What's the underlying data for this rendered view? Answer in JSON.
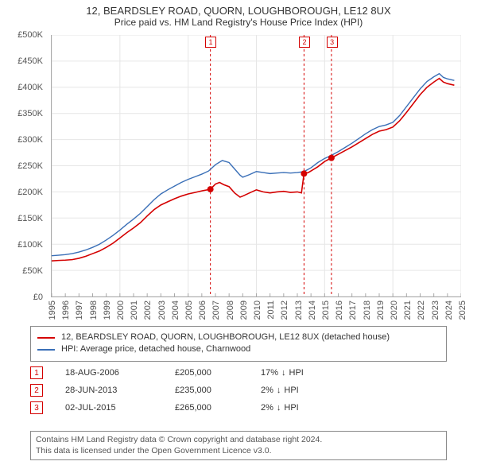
{
  "title": "12, BEARDSLEY ROAD, QUORN, LOUGHBOROUGH, LE12 8UX",
  "subtitle": "Price paid vs. HM Land Registry's House Price Index (HPI)",
  "chart": {
    "type": "line",
    "background_color": "#ffffff",
    "grid_color": "#e6e6e6",
    "axis_color": "#aaaaaa",
    "x": {
      "min": 1995,
      "max": 2025,
      "ticks": [
        1995,
        1996,
        1997,
        1998,
        1999,
        2000,
        2001,
        2002,
        2003,
        2004,
        2005,
        2006,
        2007,
        2008,
        2009,
        2010,
        2011,
        2012,
        2013,
        2014,
        2015,
        2016,
        2017,
        2018,
        2019,
        2020,
        2021,
        2022,
        2023,
        2024,
        2025
      ],
      "label_fontsize": 11
    },
    "y": {
      "min": 0,
      "max": 500000,
      "ticks": [
        0,
        50000,
        100000,
        150000,
        200000,
        250000,
        300000,
        350000,
        400000,
        450000,
        500000
      ],
      "prefix": "£",
      "suffix": "K",
      "divide": 1000,
      "label_fontsize": 11
    },
    "series": [
      {
        "name": "property",
        "label": "12, BEARDSLEY ROAD, QUORN, LOUGHBOROUGH, LE12 8UX (detached house)",
        "color": "#d40000",
        "line_width": 1.6,
        "data": [
          [
            1995,
            68000
          ],
          [
            1995.5,
            69000
          ],
          [
            1996,
            69500
          ],
          [
            1996.5,
            70500
          ],
          [
            1997,
            73000
          ],
          [
            1997.5,
            77000
          ],
          [
            1998,
            82000
          ],
          [
            1998.5,
            87000
          ],
          [
            1999,
            94000
          ],
          [
            1999.5,
            102000
          ],
          [
            2000,
            112000
          ],
          [
            2000.5,
            122000
          ],
          [
            2001,
            131000
          ],
          [
            2001.5,
            141000
          ],
          [
            2002,
            154000
          ],
          [
            2002.5,
            166000
          ],
          [
            2003,
            175000
          ],
          [
            2003.5,
            181000
          ],
          [
            2004,
            187000
          ],
          [
            2004.5,
            192000
          ],
          [
            2005,
            196000
          ],
          [
            2005.5,
            199000
          ],
          [
            2006,
            202000
          ],
          [
            2006.63,
            205000
          ],
          [
            2007,
            215000
          ],
          [
            2007.3,
            218000
          ],
          [
            2007.6,
            214000
          ],
          [
            2008,
            210000
          ],
          [
            2008.4,
            198000
          ],
          [
            2008.8,
            190000
          ],
          [
            2009,
            192000
          ],
          [
            2009.5,
            198000
          ],
          [
            2010,
            204000
          ],
          [
            2010.5,
            200000
          ],
          [
            2011,
            198000
          ],
          [
            2011.5,
            200000
          ],
          [
            2012,
            201000
          ],
          [
            2012.5,
            199000
          ],
          [
            2013,
            200000
          ],
          [
            2013.3,
            198000
          ],
          [
            2013.49,
            235000
          ],
          [
            2013.8,
            237000
          ],
          [
            2014,
            240000
          ],
          [
            2014.5,
            248000
          ],
          [
            2015,
            258000
          ],
          [
            2015.5,
            265000
          ],
          [
            2016,
            272000
          ],
          [
            2016.5,
            279000
          ],
          [
            2017,
            286000
          ],
          [
            2017.5,
            294000
          ],
          [
            2018,
            302000
          ],
          [
            2018.5,
            310000
          ],
          [
            2019,
            316000
          ],
          [
            2019.5,
            319000
          ],
          [
            2020,
            324000
          ],
          [
            2020.5,
            336000
          ],
          [
            2021,
            352000
          ],
          [
            2021.5,
            369000
          ],
          [
            2022,
            386000
          ],
          [
            2022.5,
            400000
          ],
          [
            2023,
            410000
          ],
          [
            2023.4,
            417000
          ],
          [
            2023.7,
            410000
          ],
          [
            2024,
            407000
          ],
          [
            2024.5,
            404000
          ]
        ]
      },
      {
        "name": "hpi",
        "label": "HPI: Average price, detached house, Charnwood",
        "color": "#3a6fb7",
        "line_width": 1.4,
        "data": [
          [
            1995,
            78000
          ],
          [
            1995.5,
            79000
          ],
          [
            1996,
            80000
          ],
          [
            1996.5,
            82000
          ],
          [
            1997,
            85000
          ],
          [
            1997.5,
            89000
          ],
          [
            1998,
            94000
          ],
          [
            1998.5,
            100000
          ],
          [
            1999,
            108000
          ],
          [
            1999.5,
            117000
          ],
          [
            2000,
            127000
          ],
          [
            2000.5,
            138000
          ],
          [
            2001,
            148000
          ],
          [
            2001.5,
            159000
          ],
          [
            2002,
            172000
          ],
          [
            2002.5,
            185000
          ],
          [
            2003,
            196000
          ],
          [
            2003.5,
            204000
          ],
          [
            2004,
            211000
          ],
          [
            2004.5,
            218000
          ],
          [
            2005,
            224000
          ],
          [
            2005.5,
            229000
          ],
          [
            2006,
            234000
          ],
          [
            2006.5,
            240000
          ],
          [
            2007,
            252000
          ],
          [
            2007.5,
            260000
          ],
          [
            2008,
            256000
          ],
          [
            2008.4,
            244000
          ],
          [
            2008.8,
            232000
          ],
          [
            2009,
            228000
          ],
          [
            2009.5,
            233000
          ],
          [
            2010,
            239000
          ],
          [
            2010.5,
            237000
          ],
          [
            2011,
            235000
          ],
          [
            2011.5,
            236000
          ],
          [
            2012,
            237000
          ],
          [
            2012.5,
            236000
          ],
          [
            2013,
            237000
          ],
          [
            2013.5,
            239000
          ],
          [
            2014,
            246000
          ],
          [
            2014.5,
            256000
          ],
          [
            2015,
            264000
          ],
          [
            2015.5,
            270000
          ],
          [
            2016,
            277000
          ],
          [
            2016.5,
            285000
          ],
          [
            2017,
            293000
          ],
          [
            2017.5,
            302000
          ],
          [
            2018,
            311000
          ],
          [
            2018.5,
            319000
          ],
          [
            2019,
            325000
          ],
          [
            2019.5,
            328000
          ],
          [
            2020,
            333000
          ],
          [
            2020.5,
            346000
          ],
          [
            2021,
            363000
          ],
          [
            2021.5,
            380000
          ],
          [
            2022,
            397000
          ],
          [
            2022.5,
            411000
          ],
          [
            2023,
            420000
          ],
          [
            2023.4,
            426000
          ],
          [
            2023.7,
            419000
          ],
          [
            2024,
            416000
          ],
          [
            2024.5,
            413000
          ]
        ]
      }
    ],
    "event_markers": [
      {
        "n": "1",
        "x": 2006.63,
        "y": 205000,
        "color": "#d40000"
      },
      {
        "n": "2",
        "x": 2013.49,
        "y": 235000,
        "color": "#d40000"
      },
      {
        "n": "3",
        "x": 2015.5,
        "y": 265000,
        "color": "#d40000"
      }
    ],
    "event_line_color": "#d40000",
    "event_line_dash": "3,3"
  },
  "legend": {
    "border_color": "#888888",
    "items": [
      {
        "color": "#d40000",
        "text": "12, BEARDSLEY ROAD, QUORN, LOUGHBOROUGH, LE12 8UX (detached house)"
      },
      {
        "color": "#3a6fb7",
        "text": "HPI: Average price, detached house, Charnwood"
      }
    ]
  },
  "events_table": {
    "rows": [
      {
        "n": "1",
        "box_color": "#d40000",
        "date": "18-AUG-2006",
        "price": "£205,000",
        "delta_pct": "17%",
        "delta_dir": "↓",
        "delta_ref": "HPI"
      },
      {
        "n": "2",
        "box_color": "#d40000",
        "date": "28-JUN-2013",
        "price": "£235,000",
        "delta_pct": "2%",
        "delta_dir": "↓",
        "delta_ref": "HPI"
      },
      {
        "n": "3",
        "box_color": "#d40000",
        "date": "02-JUL-2015",
        "price": "£265,000",
        "delta_pct": "2%",
        "delta_dir": "↓",
        "delta_ref": "HPI"
      }
    ]
  },
  "footer": {
    "line1": "Contains HM Land Registry data © Crown copyright and database right 2024.",
    "line2": "This data is licensed under the Open Government Licence v3.0."
  }
}
